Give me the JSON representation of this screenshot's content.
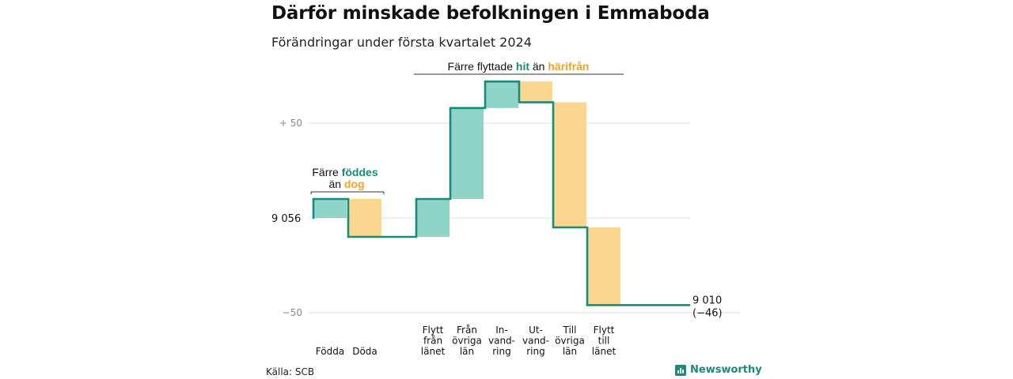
{
  "title": "Därför minskade befolkningen i Emmaboda",
  "subtitle": "Förändringar under första kvartalet 2024",
  "source": "Källa: SCB",
  "brand": "Newsworthy",
  "colors": {
    "increase": "#8ed4c8",
    "decrease": "#fbd68e",
    "line": "#1a8a7a",
    "teal_text": "#1a8a7a",
    "orange_text": "#f0a321"
  },
  "chart_data": {
    "type": "waterfall",
    "title": "Därför minskade befolkningen i Emmaboda",
    "subtitle": "Förändringar under första kvartalet 2024",
    "start_value": 9056,
    "end_value": 9010,
    "end_label": "9 010",
    "end_change_label": "(−46)",
    "start_label": "9 056",
    "y_ticks": [
      {
        "value": 50,
        "label": "+  50"
      },
      {
        "value": 0,
        "label": ""
      },
      {
        "value": -50,
        "label": "−50"
      }
    ],
    "ylim": [
      -50,
      55
    ],
    "steps": [
      {
        "category": "Födda",
        "label_lines": [
          "Födda"
        ],
        "change": 10,
        "kind": "increase"
      },
      {
        "category": "Döda",
        "label_lines": [
          "Döda"
        ],
        "change": -20,
        "kind": "decrease"
      },
      {
        "category": "Flytt från länet",
        "label_lines": [
          "Flytt",
          "från",
          "länet"
        ],
        "change": 20,
        "kind": "increase"
      },
      {
        "category": "Från övriga län",
        "label_lines": [
          "Från",
          "övriga",
          "län"
        ],
        "change": 48,
        "kind": "increase"
      },
      {
        "category": "Invandring",
        "label_lines": [
          "In-",
          "vand-",
          "ring"
        ],
        "change": 14,
        "kind": "increase"
      },
      {
        "category": "Utvandring",
        "label_lines": [
          "Ut-",
          "vand-",
          "ring"
        ],
        "change": -11,
        "kind": "decrease"
      },
      {
        "category": "Till övriga län",
        "label_lines": [
          "Till",
          "övriga",
          "län"
        ],
        "change": -66,
        "kind": "decrease"
      },
      {
        "category": "Flytt till länet",
        "label_lines": [
          "Flytt",
          "till",
          "länet"
        ],
        "change": -41,
        "kind": "decrease"
      }
    ],
    "annotations": [
      {
        "text_parts": [
          "Färre ",
          "föddes"
        ],
        "text_parts_2": [
          "än ",
          "dog"
        ],
        "spans": [
          "Födda",
          "Döda"
        ]
      },
      {
        "text_parts": [
          "Färre flyttade ",
          "hit",
          "  än ",
          "härifrån"
        ],
        "spans": [
          "Flytt från länet",
          "Flytt till länet"
        ]
      }
    ]
  }
}
